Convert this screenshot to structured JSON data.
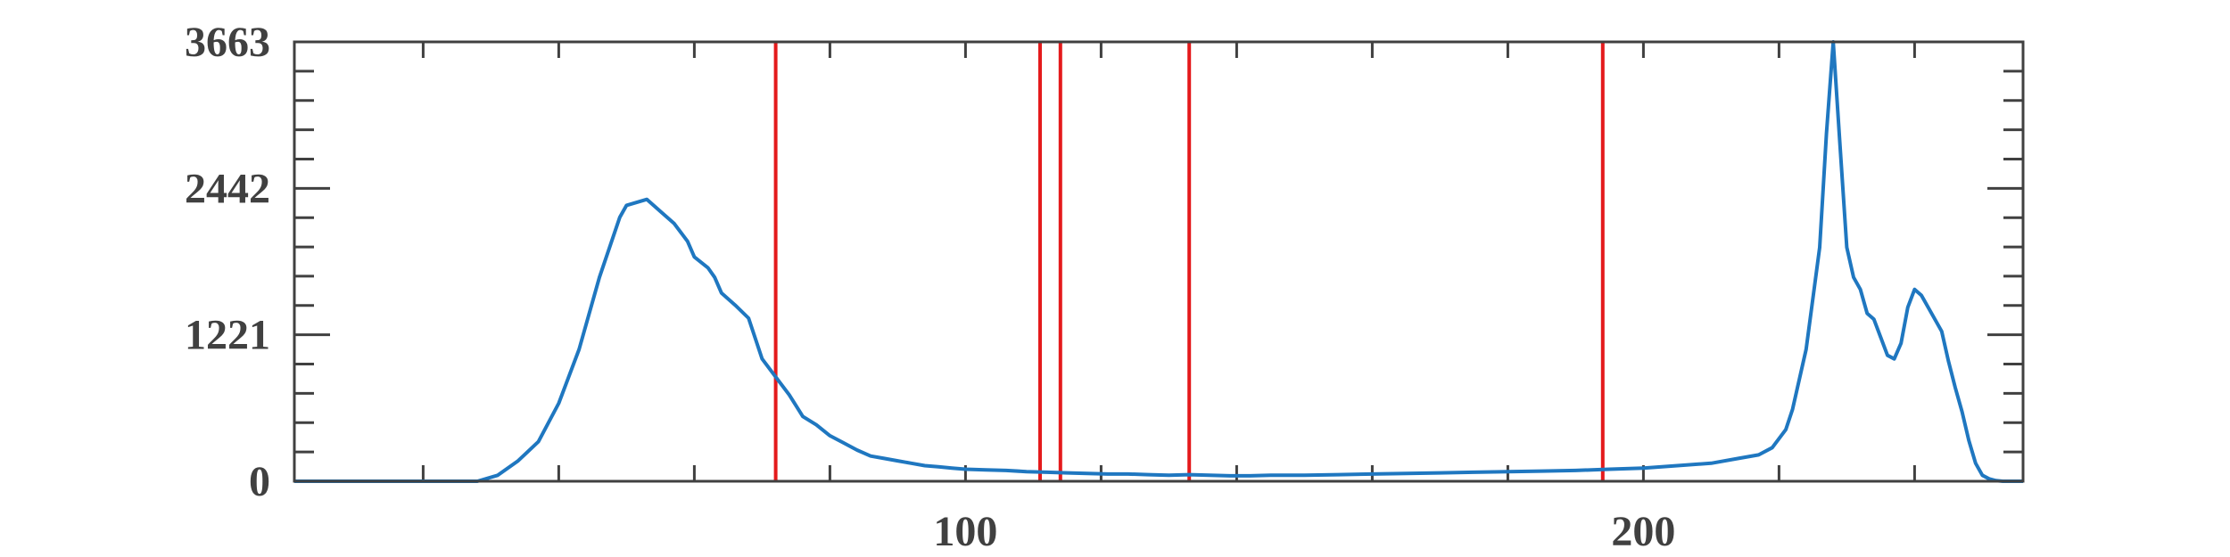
{
  "chart_data": {
    "type": "line",
    "xlim": [
      1,
      256
    ],
    "ylim": [
      0,
      3663
    ],
    "x_ticks": [
      100,
      200
    ],
    "x_tick_labels": [
      "100",
      "200"
    ],
    "y_ticks": [
      0,
      1221,
      2442,
      3663
    ],
    "y_tick_labels": [
      "0",
      "1221",
      "2442",
      "3663"
    ],
    "grid": false,
    "colors": {
      "line": "#1f77c0",
      "threshold": "#e41a1c",
      "axis": "#404040"
    },
    "thresholds": [
      72,
      111,
      114,
      133,
      194
    ],
    "series": [
      {
        "x": [
          1,
          10,
          20,
          28,
          31,
          34,
          37,
          40,
          43,
          46,
          49,
          50,
          53,
          55,
          57,
          59,
          60,
          62,
          63,
          64,
          66,
          68,
          70,
          72,
          74,
          76,
          78,
          80,
          82,
          84,
          86,
          88,
          90,
          92,
          94,
          96,
          98,
          100,
          103,
          106,
          109,
          112,
          115,
          118,
          121,
          124,
          127,
          130,
          133,
          136,
          139,
          142,
          145,
          150,
          155,
          160,
          165,
          170,
          175,
          180,
          185,
          190,
          195,
          200,
          205,
          210,
          214,
          217,
          219,
          221,
          222,
          224,
          226,
          227,
          228,
          229,
          230,
          231,
          232,
          233,
          234,
          235,
          236,
          237,
          238,
          239,
          240,
          241,
          242,
          243,
          244,
          245,
          246,
          247,
          248,
          249,
          250,
          251,
          252,
          253,
          254,
          255,
          256
        ],
        "y": [
          0,
          0,
          0,
          0,
          50,
          170,
          330,
          650,
          1100,
          1700,
          2200,
          2300,
          2350,
          2250,
          2150,
          2000,
          1870,
          1780,
          1700,
          1570,
          1470,
          1360,
          1020,
          870,
          720,
          540,
          470,
          380,
          320,
          260,
          210,
          190,
          170,
          150,
          130,
          120,
          110,
          100,
          95,
          90,
          80,
          75,
          70,
          65,
          60,
          60,
          55,
          50,
          55,
          50,
          45,
          45,
          50,
          50,
          55,
          60,
          65,
          70,
          75,
          80,
          85,
          90,
          100,
          110,
          130,
          150,
          190,
          220,
          280,
          430,
          600,
          1100,
          1950,
          2900,
          3663,
          2800,
          1950,
          1700,
          1600,
          1400,
          1350,
          1200,
          1050,
          1020,
          1150,
          1450,
          1600,
          1550,
          1450,
          1350,
          1250,
          1000,
          780,
          580,
          340,
          150,
          50,
          20,
          5,
          0,
          0,
          0,
          0
        ]
      }
    ]
  }
}
